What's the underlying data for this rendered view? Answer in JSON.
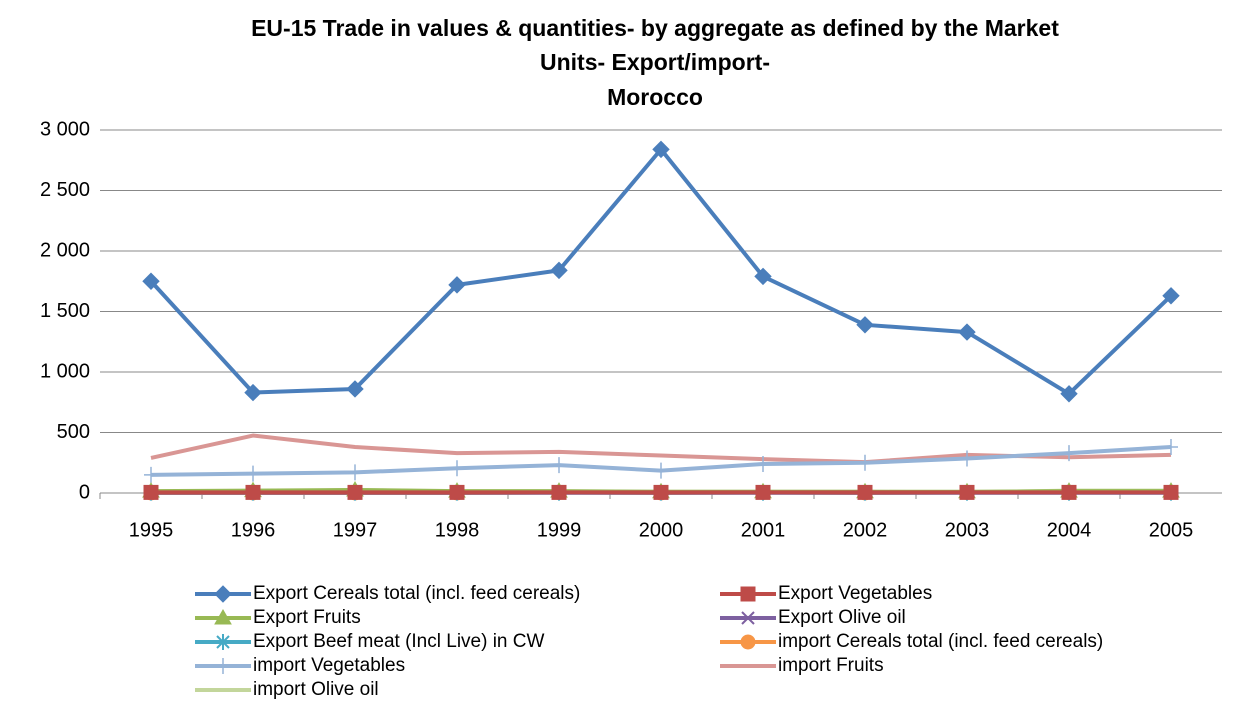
{
  "chart_data": {
    "type": "line",
    "title": [
      "EU-15 Trade in values & quantities- by aggregate as defined by the Market",
      "Units- Export/import-",
      "Morocco"
    ],
    "categories": [
      "1995",
      "1996",
      "1997",
      "1998",
      "1999",
      "2000",
      "2001",
      "2002",
      "2003",
      "2004",
      "2005"
    ],
    "ylim": [
      0,
      3000
    ],
    "yticks": [
      0,
      500,
      {
        "value": 1000,
        "label": "1 000"
      },
      {
        "value": 1500,
        "label": "1 500"
      },
      {
        "value": 2000,
        "label": "2 000"
      },
      {
        "value": 2500,
        "label": "2 500"
      },
      {
        "value": 3000,
        "label": "3 000"
      }
    ],
    "grid": true,
    "legend": "bottom",
    "series": [
      {
        "name": "Export Cereals total (incl. feed cereals)",
        "color": "#4a7ebb",
        "marker": "diamond",
        "values": [
          1750,
          830,
          860,
          1720,
          1840,
          2840,
          1790,
          1390,
          1330,
          820,
          1630
        ]
      },
      {
        "name": "Export Vegetables",
        "color": "#be4b48",
        "marker": "square",
        "values": [
          5,
          5,
          5,
          5,
          5,
          5,
          5,
          5,
          5,
          5,
          5
        ]
      },
      {
        "name": "Export Fruits",
        "color": "#98b954",
        "marker": "triangle",
        "values": [
          15,
          20,
          25,
          15,
          15,
          10,
          10,
          10,
          10,
          15,
          15
        ]
      },
      {
        "name": "Export Olive oil",
        "color": "#7d60a0",
        "marker": "x",
        "values": [
          2,
          2,
          2,
          2,
          2,
          2,
          2,
          2,
          2,
          2,
          2
        ]
      },
      {
        "name": "Export Beef meat (Incl Live) in CW",
        "color": "#46aac5",
        "marker": "star",
        "values": [
          3,
          3,
          3,
          3,
          3,
          3,
          3,
          3,
          3,
          3,
          3
        ]
      },
      {
        "name": "import Cereals total (incl. feed cereals)",
        "color": "#f79646",
        "marker": "circle",
        "values": [
          0,
          0,
          0,
          0,
          5,
          0,
          5,
          0,
          5,
          5,
          5
        ]
      },
      {
        "name": "import Vegetables",
        "color": "#95b3d7",
        "marker": "plus",
        "values": [
          150,
          160,
          170,
          205,
          230,
          185,
          240,
          250,
          285,
          330,
          380
        ]
      },
      {
        "name": "import Fruits",
        "color": "#d99694",
        "marker": "none",
        "values": [
          290,
          475,
          380,
          330,
          340,
          310,
          280,
          255,
          315,
          295,
          315
        ]
      },
      {
        "name": "import Olive oil",
        "color": "#c3d69b",
        "marker": "none",
        "values": [
          10,
          10,
          25,
          10,
          10,
          10,
          10,
          10,
          5,
          20,
          20
        ]
      }
    ]
  }
}
